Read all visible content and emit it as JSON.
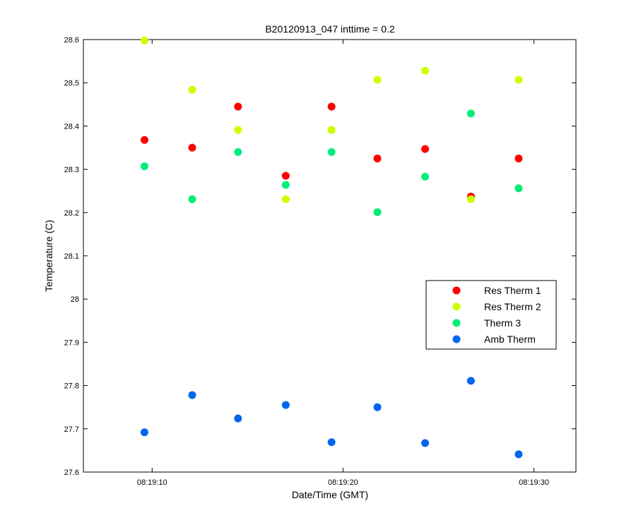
{
  "chart_data": {
    "type": "scatter",
    "title": "B20120913_047 inttime = 0.2",
    "xlabel": "Date/Time (GMT)",
    "ylabel": "Temperature (C)",
    "x_unit": "seconds after 08:19:00 GMT",
    "xlim": [
      6.4,
      32.2
    ],
    "ylim": [
      27.6,
      28.6
    ],
    "x_ticks": [
      {
        "value": 10,
        "label": "08:19:10"
      },
      {
        "value": 20,
        "label": "08:19:20"
      },
      {
        "value": 30,
        "label": "08:19:30"
      }
    ],
    "y_ticks": [
      {
        "value": 27.6,
        "label": "27.6"
      },
      {
        "value": 27.7,
        "label": "27.7"
      },
      {
        "value": 27.8,
        "label": "27.8"
      },
      {
        "value": 27.9,
        "label": "27.9"
      },
      {
        "value": 28.0,
        "label": "28"
      },
      {
        "value": 28.1,
        "label": "28.1"
      },
      {
        "value": 28.2,
        "label": "28.2"
      },
      {
        "value": 28.3,
        "label": "28.3"
      },
      {
        "value": 28.4,
        "label": "28.4"
      },
      {
        "value": 28.5,
        "label": "28.5"
      },
      {
        "value": 28.6,
        "label": "28.6"
      }
    ],
    "x": [
      9.6,
      12.1,
      14.5,
      17.0,
      19.4,
      21.8,
      24.3,
      26.7,
      29.2
    ],
    "grid": false,
    "legend_position": "right",
    "series": [
      {
        "name": "Res Therm 1",
        "color": "#ff0000",
        "values": [
          28.368,
          28.35,
          28.445,
          28.285,
          28.445,
          28.325,
          28.347,
          28.237,
          28.325
        ]
      },
      {
        "name": "Res Therm 2",
        "color": "#ccff00",
        "values": [
          28.598,
          28.484,
          28.391,
          28.231,
          28.391,
          28.507,
          28.528,
          28.231,
          28.507
        ]
      },
      {
        "name": "Therm 3",
        "color": "#00ee77",
        "values": [
          28.307,
          28.231,
          28.34,
          28.264,
          28.34,
          28.201,
          28.283,
          28.429,
          28.256
        ]
      },
      {
        "name": "Amb Therm",
        "color": "#0066ee",
        "values": [
          27.692,
          27.778,
          27.724,
          27.755,
          27.669,
          27.75,
          27.667,
          27.811,
          27.641
        ]
      }
    ]
  }
}
